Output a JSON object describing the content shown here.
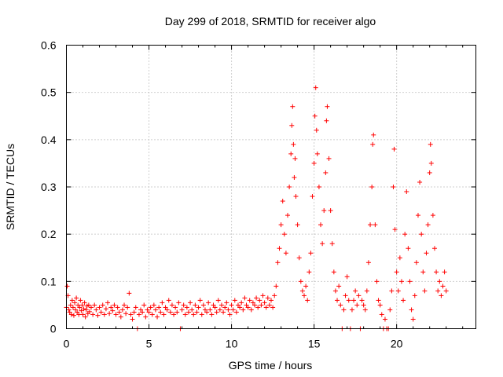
{
  "chart_data": {
    "type": "scatter",
    "title": "Day 299 of 2018, SRMTID for receiver algo",
    "xlabel": "GPS time / hours",
    "ylabel": "SRMTID / TECUs",
    "xlim": [
      0,
      24.8
    ],
    "ylim": [
      0,
      0.6
    ],
    "xticks": [
      0,
      5,
      10,
      15,
      20
    ],
    "yticks": [
      0,
      0.1,
      0.2,
      0.3,
      0.4,
      0.5,
      0.6
    ],
    "xtick_labels": [
      "0",
      "5",
      "10",
      "15",
      "20"
    ],
    "ytick_labels": [
      "0",
      "0.1",
      "0.2",
      "0.3",
      "0.4",
      "0.5",
      "0.6"
    ],
    "grid": true,
    "legend": "none",
    "marker": "+",
    "series": [
      {
        "name": "SRMTID",
        "color": "#ff0000",
        "points": [
          [
            0.0,
            0.045
          ],
          [
            0.05,
            0.09
          ],
          [
            0.1,
            0.07
          ],
          [
            0.15,
            0.04
          ],
          [
            0.2,
            0.035
          ],
          [
            0.25,
            0.05
          ],
          [
            0.3,
            0.03
          ],
          [
            0.35,
            0.06
          ],
          [
            0.4,
            0.045
          ],
          [
            0.45,
            0.028
          ],
          [
            0.5,
            0.055
          ],
          [
            0.55,
            0.04
          ],
          [
            0.6,
            0.065
          ],
          [
            0.65,
            0.035
          ],
          [
            0.7,
            0.05
          ],
          [
            0.75,
            0.03
          ],
          [
            0.8,
            0.045
          ],
          [
            0.85,
            0.06
          ],
          [
            0.9,
            0.038
          ],
          [
            0.95,
            0.05
          ],
          [
            1.0,
            0.03
          ],
          [
            1.05,
            0.042
          ],
          [
            1.1,
            0.055
          ],
          [
            1.15,
            0.025
          ],
          [
            1.2,
            0.04
          ],
          [
            1.25,
            0.048
          ],
          [
            1.3,
            0.032
          ],
          [
            1.35,
            0.05
          ],
          [
            1.4,
            0.036
          ],
          [
            1.5,
            0.045
          ],
          [
            1.6,
            0.03
          ],
          [
            1.7,
            0.05
          ],
          [
            1.8,
            0.04
          ],
          [
            1.9,
            0.028
          ],
          [
            2.0,
            0.045
          ],
          [
            2.1,
            0.035
          ],
          [
            2.2,
            0.05
          ],
          [
            2.3,
            0.03
          ],
          [
            2.4,
            0.042
          ],
          [
            2.5,
            0.055
          ],
          [
            2.6,
            0.032
          ],
          [
            2.7,
            0.045
          ],
          [
            2.8,
            0.038
          ],
          [
            2.9,
            0.05
          ],
          [
            3.0,
            0.03
          ],
          [
            3.1,
            0.045
          ],
          [
            3.2,
            0.035
          ],
          [
            3.3,
            0.025
          ],
          [
            3.4,
            0.04
          ],
          [
            3.5,
            0.05
          ],
          [
            3.6,
            0.032
          ],
          [
            3.7,
            0.045
          ],
          [
            3.8,
            0.075
          ],
          [
            3.9,
            0.03
          ],
          [
            4.0,
            0.02
          ],
          [
            4.1,
            0.035
          ],
          [
            4.2,
            0.045
          ],
          [
            4.3,
            0.0
          ],
          [
            4.4,
            0.03
          ],
          [
            4.5,
            0.04
          ],
          [
            4.6,
            0.035
          ],
          [
            4.7,
            0.05
          ],
          [
            4.8,
            0.025
          ],
          [
            4.9,
            0.04
          ],
          [
            5.0,
            0.035
          ],
          [
            5.1,
            0.045
          ],
          [
            5.2,
            0.03
          ],
          [
            5.3,
            0.05
          ],
          [
            5.4,
            0.04
          ],
          [
            5.5,
            0.025
          ],
          [
            5.6,
            0.045
          ],
          [
            5.7,
            0.035
          ],
          [
            5.8,
            0.055
          ],
          [
            5.9,
            0.03
          ],
          [
            6.0,
            0.045
          ],
          [
            6.1,
            0.04
          ],
          [
            6.2,
            0.06
          ],
          [
            6.3,
            0.035
          ],
          [
            6.4,
            0.05
          ],
          [
            6.5,
            0.03
          ],
          [
            6.6,
            0.045
          ],
          [
            6.7,
            0.035
          ],
          [
            6.8,
            0.055
          ],
          [
            6.9,
            0.0
          ],
          [
            7.0,
            0.04
          ],
          [
            7.1,
            0.05
          ],
          [
            7.2,
            0.03
          ],
          [
            7.3,
            0.045
          ],
          [
            7.4,
            0.035
          ],
          [
            7.5,
            0.055
          ],
          [
            7.6,
            0.04
          ],
          [
            7.7,
            0.03
          ],
          [
            7.8,
            0.05
          ],
          [
            7.9,
            0.035
          ],
          [
            8.0,
            0.045
          ],
          [
            8.1,
            0.06
          ],
          [
            8.2,
            0.03
          ],
          [
            8.3,
            0.05
          ],
          [
            8.4,
            0.04
          ],
          [
            8.5,
            0.035
          ],
          [
            8.6,
            0.055
          ],
          [
            8.7,
            0.04
          ],
          [
            8.8,
            0.03
          ],
          [
            8.9,
            0.05
          ],
          [
            9.0,
            0.045
          ],
          [
            9.1,
            0.035
          ],
          [
            9.2,
            0.06
          ],
          [
            9.3,
            0.04
          ],
          [
            9.4,
            0.05
          ],
          [
            9.5,
            0.035
          ],
          [
            9.6,
            0.045
          ],
          [
            9.7,
            0.055
          ],
          [
            9.8,
            0.04
          ],
          [
            9.9,
            0.03
          ],
          [
            10.0,
            0.05
          ],
          [
            10.1,
            0.04
          ],
          [
            10.2,
            0.06
          ],
          [
            10.3,
            0.035
          ],
          [
            10.4,
            0.05
          ],
          [
            10.5,
            0.045
          ],
          [
            10.6,
            0.055
          ],
          [
            10.7,
            0.04
          ],
          [
            10.8,
            0.065
          ],
          [
            10.9,
            0.05
          ],
          [
            11.0,
            0.045
          ],
          [
            11.1,
            0.06
          ],
          [
            11.2,
            0.04
          ],
          [
            11.3,
            0.055
          ],
          [
            11.4,
            0.05
          ],
          [
            11.5,
            0.065
          ],
          [
            11.6,
            0.045
          ],
          [
            11.7,
            0.06
          ],
          [
            11.8,
            0.05
          ],
          [
            11.9,
            0.07
          ],
          [
            12.0,
            0.055
          ],
          [
            12.1,
            0.045
          ],
          [
            12.2,
            0.065
          ],
          [
            12.3,
            0.05
          ],
          [
            12.4,
            0.06
          ],
          [
            12.5,
            0.045
          ],
          [
            12.6,
            0.07
          ],
          [
            12.7,
            0.09
          ],
          [
            12.8,
            0.14
          ],
          [
            12.9,
            0.17
          ],
          [
            13.0,
            0.22
          ],
          [
            13.1,
            0.27
          ],
          [
            13.2,
            0.2
          ],
          [
            13.3,
            0.16
          ],
          [
            13.4,
            0.24
          ],
          [
            13.5,
            0.3
          ],
          [
            13.6,
            0.37
          ],
          [
            13.65,
            0.43
          ],
          [
            13.7,
            0.47
          ],
          [
            13.75,
            0.39
          ],
          [
            13.8,
            0.32
          ],
          [
            13.85,
            0.36
          ],
          [
            13.9,
            0.28
          ],
          [
            14.0,
            0.22
          ],
          [
            14.1,
            0.15
          ],
          [
            14.2,
            0.1
          ],
          [
            14.3,
            0.08
          ],
          [
            14.4,
            0.07
          ],
          [
            14.5,
            0.09
          ],
          [
            14.6,
            0.06
          ],
          [
            14.7,
            0.12
          ],
          [
            14.8,
            0.16
          ],
          [
            14.9,
            0.28
          ],
          [
            15.0,
            0.35
          ],
          [
            15.05,
            0.45
          ],
          [
            15.1,
            0.51
          ],
          [
            15.15,
            0.42
          ],
          [
            15.2,
            0.37
          ],
          [
            15.3,
            0.3
          ],
          [
            15.4,
            0.22
          ],
          [
            15.5,
            0.18
          ],
          [
            15.6,
            0.25
          ],
          [
            15.7,
            0.33
          ],
          [
            15.75,
            0.44
          ],
          [
            15.8,
            0.47
          ],
          [
            15.9,
            0.36
          ],
          [
            16.0,
            0.25
          ],
          [
            16.1,
            0.18
          ],
          [
            16.2,
            0.12
          ],
          [
            16.3,
            0.08
          ],
          [
            16.4,
            0.06
          ],
          [
            16.5,
            0.09
          ],
          [
            16.6,
            0.05
          ],
          [
            16.7,
            0.0
          ],
          [
            16.8,
            0.04
          ],
          [
            16.9,
            0.07
          ],
          [
            17.0,
            0.11
          ],
          [
            17.1,
            0.06
          ],
          [
            17.2,
            0.0
          ],
          [
            17.3,
            0.04
          ],
          [
            17.4,
            0.06
          ],
          [
            17.5,
            0.08
          ],
          [
            17.6,
            0.05
          ],
          [
            17.7,
            0.07
          ],
          [
            17.8,
            0.0
          ],
          [
            17.9,
            0.06
          ],
          [
            18.0,
            0.05
          ],
          [
            18.1,
            0.04
          ],
          [
            18.2,
            0.08
          ],
          [
            18.3,
            0.14
          ],
          [
            18.4,
            0.22
          ],
          [
            18.5,
            0.3
          ],
          [
            18.55,
            0.39
          ],
          [
            18.6,
            0.41
          ],
          [
            18.7,
            0.22
          ],
          [
            18.8,
            0.1
          ],
          [
            18.9,
            0.06
          ],
          [
            19.0,
            0.05
          ],
          [
            19.1,
            0.03
          ],
          [
            19.2,
            0.0
          ],
          [
            19.3,
            0.02
          ],
          [
            19.4,
            0.0
          ],
          [
            19.5,
            0.0
          ],
          [
            19.6,
            0.04
          ],
          [
            19.7,
            0.08
          ],
          [
            19.8,
            0.3
          ],
          [
            19.85,
            0.38
          ],
          [
            19.9,
            0.21
          ],
          [
            20.0,
            0.12
          ],
          [
            20.1,
            0.08
          ],
          [
            20.2,
            0.15
          ],
          [
            20.3,
            0.1
          ],
          [
            20.4,
            0.06
          ],
          [
            20.5,
            0.2
          ],
          [
            20.6,
            0.29
          ],
          [
            20.7,
            0.17
          ],
          [
            20.8,
            0.1
          ],
          [
            20.9,
            0.04
          ],
          [
            21.0,
            0.02
          ],
          [
            21.1,
            0.07
          ],
          [
            21.2,
            0.14
          ],
          [
            21.3,
            0.24
          ],
          [
            21.4,
            0.31
          ],
          [
            21.5,
            0.2
          ],
          [
            21.6,
            0.12
          ],
          [
            21.7,
            0.08
          ],
          [
            21.8,
            0.16
          ],
          [
            21.9,
            0.22
          ],
          [
            22.0,
            0.33
          ],
          [
            22.05,
            0.39
          ],
          [
            22.1,
            0.35
          ],
          [
            22.2,
            0.24
          ],
          [
            22.3,
            0.17
          ],
          [
            22.4,
            0.12
          ],
          [
            22.5,
            0.08
          ],
          [
            22.6,
            0.1
          ],
          [
            22.7,
            0.07
          ],
          [
            22.8,
            0.09
          ],
          [
            22.9,
            0.12
          ],
          [
            23.0,
            0.08
          ]
        ]
      }
    ]
  }
}
